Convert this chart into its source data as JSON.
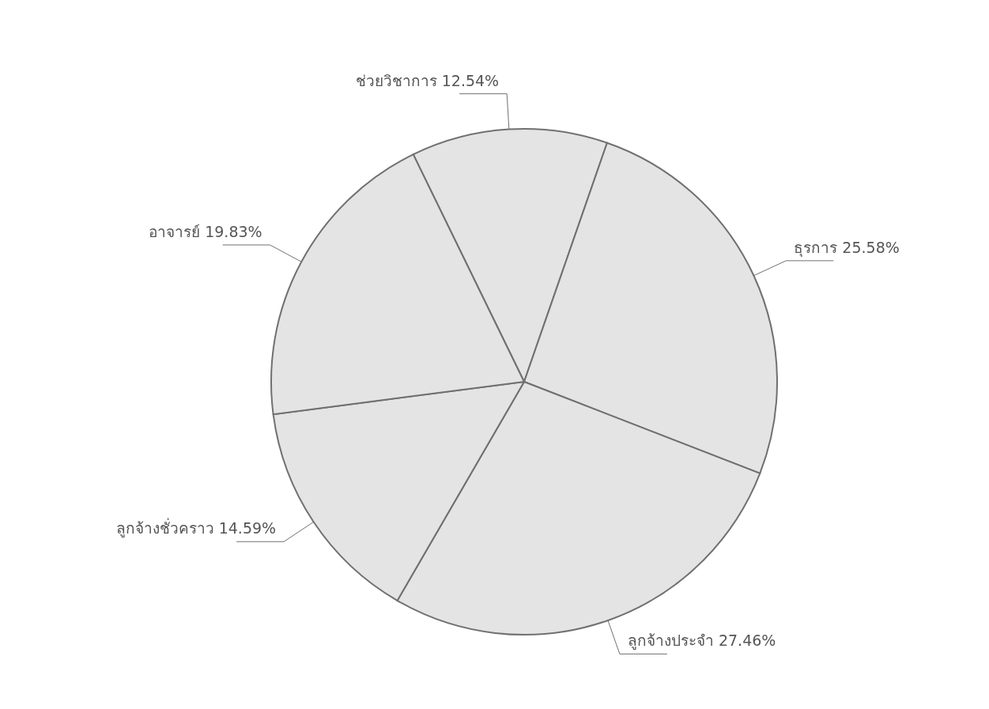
{
  "chart_data": {
    "type": "pie",
    "categories": [
      "ช่วยวิชาการ",
      "ธุรการ",
      "ลูกจ้างประจำ",
      "ลูกจ้างชั่วคราว",
      "อาจารย์"
    ],
    "values": [
      12.54,
      25.58,
      27.46,
      14.59,
      19.83
    ],
    "value_labels": [
      "12.54%",
      "25.58%",
      "27.46%",
      "14.59%",
      "19.83%"
    ],
    "colors": [
      "#e4e4e4",
      "#e4e4e4",
      "#e4e4e4",
      "#e4e4e4",
      "#e4e4e4"
    ]
  }
}
